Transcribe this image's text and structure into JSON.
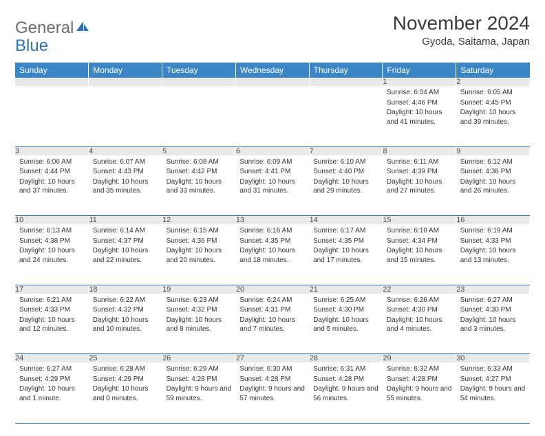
{
  "brand": {
    "part1": "General",
    "part2": "Blue"
  },
  "title": "November 2024",
  "location": "Gyoda, Saitama, Japan",
  "colors": {
    "header_bg": "#3a85c6",
    "header_text": "#ffffff",
    "daynum_bg": "#e9e9e9",
    "border": "#2a72b5",
    "brand_gray": "#6d6d6d",
    "brand_blue": "#2a72b5",
    "text": "#333333"
  },
  "weekdays": [
    "Sunday",
    "Monday",
    "Tuesday",
    "Wednesday",
    "Thursday",
    "Friday",
    "Saturday"
  ],
  "weeks": [
    [
      null,
      null,
      null,
      null,
      null,
      {
        "n": "1",
        "sunrise": "Sunrise: 6:04 AM",
        "sunset": "Sunset: 4:46 PM",
        "daylight": "Daylight: 10 hours and 41 minutes."
      },
      {
        "n": "2",
        "sunrise": "Sunrise: 6:05 AM",
        "sunset": "Sunset: 4:45 PM",
        "daylight": "Daylight: 10 hours and 39 minutes."
      }
    ],
    [
      {
        "n": "3",
        "sunrise": "Sunrise: 6:06 AM",
        "sunset": "Sunset: 4:44 PM",
        "daylight": "Daylight: 10 hours and 37 minutes."
      },
      {
        "n": "4",
        "sunrise": "Sunrise: 6:07 AM",
        "sunset": "Sunset: 4:43 PM",
        "daylight": "Daylight: 10 hours and 35 minutes."
      },
      {
        "n": "5",
        "sunrise": "Sunrise: 6:08 AM",
        "sunset": "Sunset: 4:42 PM",
        "daylight": "Daylight: 10 hours and 33 minutes."
      },
      {
        "n": "6",
        "sunrise": "Sunrise: 6:09 AM",
        "sunset": "Sunset: 4:41 PM",
        "daylight": "Daylight: 10 hours and 31 minutes."
      },
      {
        "n": "7",
        "sunrise": "Sunrise: 6:10 AM",
        "sunset": "Sunset: 4:40 PM",
        "daylight": "Daylight: 10 hours and 29 minutes."
      },
      {
        "n": "8",
        "sunrise": "Sunrise: 6:11 AM",
        "sunset": "Sunset: 4:39 PM",
        "daylight": "Daylight: 10 hours and 27 minutes."
      },
      {
        "n": "9",
        "sunrise": "Sunrise: 6:12 AM",
        "sunset": "Sunset: 4:38 PM",
        "daylight": "Daylight: 10 hours and 26 minutes."
      }
    ],
    [
      {
        "n": "10",
        "sunrise": "Sunrise: 6:13 AM",
        "sunset": "Sunset: 4:38 PM",
        "daylight": "Daylight: 10 hours and 24 minutes."
      },
      {
        "n": "11",
        "sunrise": "Sunrise: 6:14 AM",
        "sunset": "Sunset: 4:37 PM",
        "daylight": "Daylight: 10 hours and 22 minutes."
      },
      {
        "n": "12",
        "sunrise": "Sunrise: 6:15 AM",
        "sunset": "Sunset: 4:36 PM",
        "daylight": "Daylight: 10 hours and 20 minutes."
      },
      {
        "n": "13",
        "sunrise": "Sunrise: 6:16 AM",
        "sunset": "Sunset: 4:35 PM",
        "daylight": "Daylight: 10 hours and 18 minutes."
      },
      {
        "n": "14",
        "sunrise": "Sunrise: 6:17 AM",
        "sunset": "Sunset: 4:35 PM",
        "daylight": "Daylight: 10 hours and 17 minutes."
      },
      {
        "n": "15",
        "sunrise": "Sunrise: 6:18 AM",
        "sunset": "Sunset: 4:34 PM",
        "daylight": "Daylight: 10 hours and 15 minutes."
      },
      {
        "n": "16",
        "sunrise": "Sunrise: 6:19 AM",
        "sunset": "Sunset: 4:33 PM",
        "daylight": "Daylight: 10 hours and 13 minutes."
      }
    ],
    [
      {
        "n": "17",
        "sunrise": "Sunrise: 6:21 AM",
        "sunset": "Sunset: 4:33 PM",
        "daylight": "Daylight: 10 hours and 12 minutes."
      },
      {
        "n": "18",
        "sunrise": "Sunrise: 6:22 AM",
        "sunset": "Sunset: 4:32 PM",
        "daylight": "Daylight: 10 hours and 10 minutes."
      },
      {
        "n": "19",
        "sunrise": "Sunrise: 6:23 AM",
        "sunset": "Sunset: 4:32 PM",
        "daylight": "Daylight: 10 hours and 8 minutes."
      },
      {
        "n": "20",
        "sunrise": "Sunrise: 6:24 AM",
        "sunset": "Sunset: 4:31 PM",
        "daylight": "Daylight: 10 hours and 7 minutes."
      },
      {
        "n": "21",
        "sunrise": "Sunrise: 6:25 AM",
        "sunset": "Sunset: 4:30 PM",
        "daylight": "Daylight: 10 hours and 5 minutes."
      },
      {
        "n": "22",
        "sunrise": "Sunrise: 6:26 AM",
        "sunset": "Sunset: 4:30 PM",
        "daylight": "Daylight: 10 hours and 4 minutes."
      },
      {
        "n": "23",
        "sunrise": "Sunrise: 6:27 AM",
        "sunset": "Sunset: 4:30 PM",
        "daylight": "Daylight: 10 hours and 3 minutes."
      }
    ],
    [
      {
        "n": "24",
        "sunrise": "Sunrise: 6:27 AM",
        "sunset": "Sunset: 4:29 PM",
        "daylight": "Daylight: 10 hours and 1 minute."
      },
      {
        "n": "25",
        "sunrise": "Sunrise: 6:28 AM",
        "sunset": "Sunset: 4:29 PM",
        "daylight": "Daylight: 10 hours and 0 minutes."
      },
      {
        "n": "26",
        "sunrise": "Sunrise: 6:29 AM",
        "sunset": "Sunset: 4:28 PM",
        "daylight": "Daylight: 9 hours and 59 minutes."
      },
      {
        "n": "27",
        "sunrise": "Sunrise: 6:30 AM",
        "sunset": "Sunset: 4:28 PM",
        "daylight": "Daylight: 9 hours and 57 minutes."
      },
      {
        "n": "28",
        "sunrise": "Sunrise: 6:31 AM",
        "sunset": "Sunset: 4:28 PM",
        "daylight": "Daylight: 9 hours and 56 minutes."
      },
      {
        "n": "29",
        "sunrise": "Sunrise: 6:32 AM",
        "sunset": "Sunset: 4:28 PM",
        "daylight": "Daylight: 9 hours and 55 minutes."
      },
      {
        "n": "30",
        "sunrise": "Sunrise: 6:33 AM",
        "sunset": "Sunset: 4:27 PM",
        "daylight": "Daylight: 9 hours and 54 minutes."
      }
    ]
  ]
}
